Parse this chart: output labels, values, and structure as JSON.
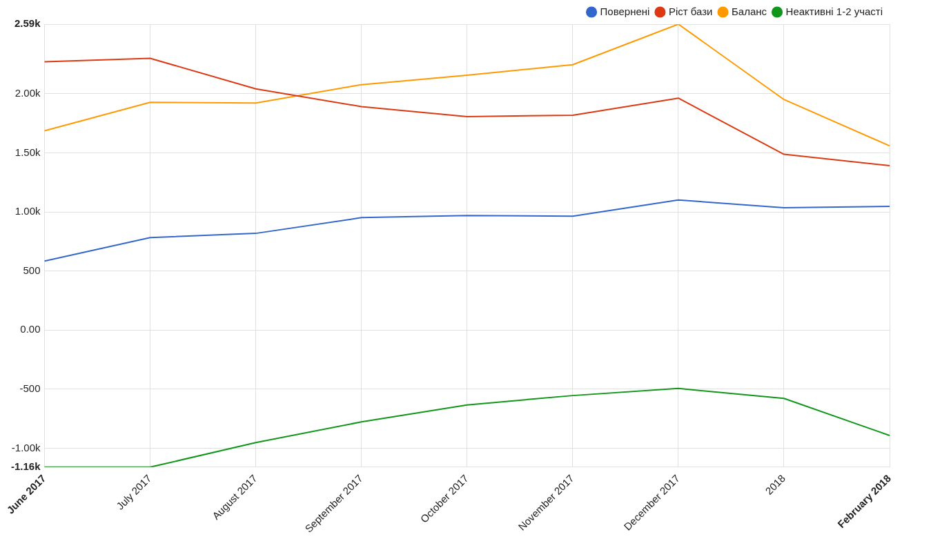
{
  "chart_data": {
    "type": "line",
    "categories": [
      "June 2017",
      "July 2017",
      "August 2017",
      "September 2017",
      "October 2017",
      "November 2017",
      "December 2017",
      "2018",
      "February 2018"
    ],
    "series": [
      {
        "name": "Повернені",
        "color": "#3366cc",
        "values": [
          584,
          783,
          819,
          952,
          970,
          964,
          1102,
          1036,
          1048
        ]
      },
      {
        "name": "Ріст бази",
        "color": "#dc3912",
        "values": [
          2271,
          2301,
          2042,
          1892,
          1807,
          1819,
          1964,
          1488,
          1392
        ]
      },
      {
        "name": "Баланс",
        "color": "#ff9900",
        "values": [
          1687,
          1928,
          1922,
          2078,
          2157,
          2247,
          2590,
          1952,
          1560
        ]
      },
      {
        "name": "Неактивні 1-2 участі",
        "color": "#109618",
        "values": [
          -1160,
          -1160,
          -952,
          -777,
          -633,
          -554,
          -494,
          -578,
          -892
        ]
      }
    ],
    "ylim": [
      -1160,
      2590
    ],
    "yticks": [
      {
        "value": -1160,
        "label": "-1.16k"
      },
      {
        "value": -1000,
        "label": "-1.00k"
      },
      -500,
      {
        "value": 0,
        "label": "0.00"
      },
      500,
      {
        "value": 1000,
        "label": "1.00k"
      },
      {
        "value": 1500,
        "label": "1.50k"
      },
      {
        "value": 2000,
        "label": "2.00k"
      },
      {
        "value": 2590,
        "label": "2.59k"
      }
    ],
    "grid": true,
    "legend": "top right",
    "marker": "none",
    "line_style": "solid"
  }
}
